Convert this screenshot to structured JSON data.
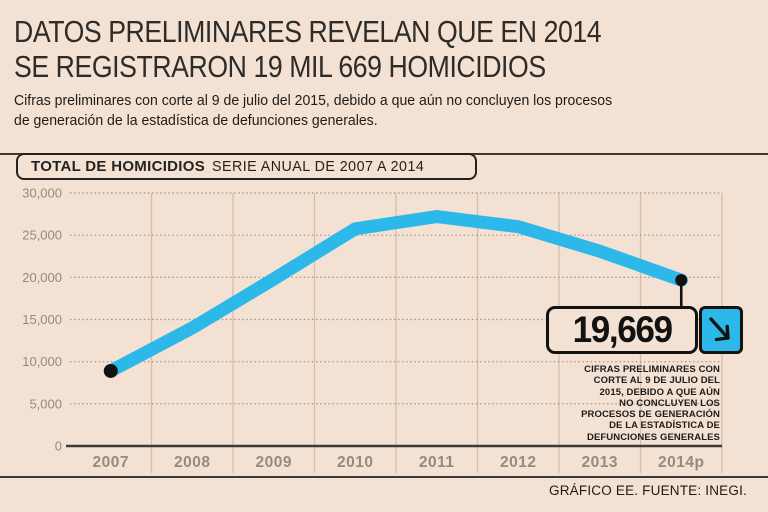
{
  "colors": {
    "background": "#f3e1d3",
    "line": "#2cb9e9",
    "icon_tile": "#2cb9e9",
    "ink": "#242220",
    "axis_labels": "#97897c",
    "grid_dotted": "#a1938629",
    "grid_dot_color": "#a09284",
    "column_separator": "#d3bdac",
    "axis_line": "#3c3a38",
    "marker": "#121210"
  },
  "header": {
    "title": "DATOS PRELIMINARES REVELAN QUE EN 2014\nSE REGISTRARON 19 MIL 669 HOMICIDIOS",
    "subtitle": "Cifras preliminares con corte al 9 de julio del 2015, debido a que aún no concluyen los procesos\nde generación de la estadística de defunciones generales."
  },
  "chart_header": {
    "title_bold": "TOTAL DE HOMICIDIOS",
    "title_regular": "SERIE ANUAL DE 2007 A 2014"
  },
  "chart_data": {
    "type": "line",
    "title": "TOTAL DE HOMICIDIOS — SERIE ANUAL DE 2007 A 2014",
    "categories": [
      "2007",
      "2008",
      "2009",
      "2010",
      "2011",
      "2012",
      "2013",
      "2014p"
    ],
    "values": [
      8900,
      14000,
      19800,
      25750,
      27200,
      26000,
      23100,
      19669
    ],
    "ylim": [
      0,
      30000
    ],
    "ytick_step": 5000,
    "ytick_labels": [
      "0",
      "5,000",
      "10,000",
      "15,000",
      "20,000",
      "25,000",
      "30,000"
    ],
    "xlabel": "",
    "ylabel": "",
    "legend": "none",
    "grid": "horizontal dotted gridlines, vertical solid column separators",
    "marked_point_indices": [
      0,
      7
    ],
    "callout": {
      "value_label": "19,669",
      "icon": "arrow-down-right"
    },
    "annotation": "CIFRAS PRELIMINARES CON\nCORTE AL 9 DE JULIO DEL\n2015, DEBIDO A QUE AÚN\nNO CONCLUYEN LOS\nPROCESOS DE GENERACIÓN\nDE LA ESTADÍSTICA DE\nDEFUNCIONES GENERALES"
  },
  "footer": {
    "credit": "GRÁFICO EE. FUENTE: INEGI."
  }
}
